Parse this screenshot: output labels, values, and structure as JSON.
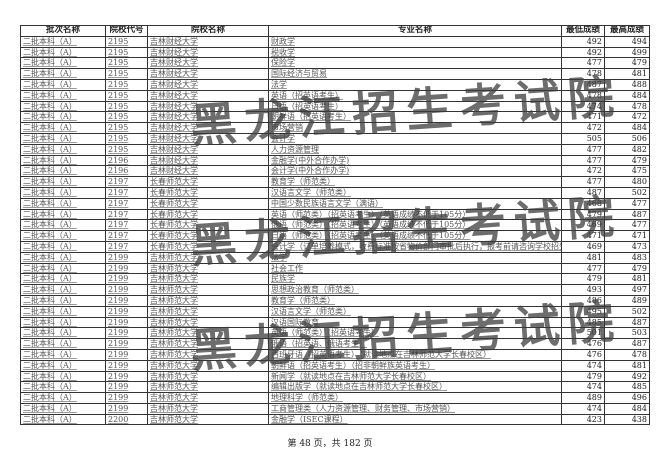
{
  "headers": [
    "批次名称",
    "院校代号",
    "院校名称",
    "专业名称",
    "最低成绩",
    "最高成绩"
  ],
  "rows": [
    [
      "二批本科（A）",
      "2195",
      "吉林财经大学",
      "财政学",
      "492",
      "494"
    ],
    [
      "二批本科（A）",
      "2195",
      "吉林财经大学",
      "税收学",
      "492",
      "499"
    ],
    [
      "二批本科（A）",
      "2195",
      "吉林财经大学",
      "保险学",
      "477",
      "479"
    ],
    [
      "二批本科（A）",
      "2195",
      "吉林财经大学",
      "国际经济与贸易",
      "478",
      "481"
    ],
    [
      "二批本科（A）",
      "2195",
      "吉林财经大学",
      "法学",
      "487",
      "488"
    ],
    [
      "二批本科（A）",
      "2195",
      "吉林财经大学",
      "英语（招英语考生）",
      "478",
      "484"
    ],
    [
      "二批本科（A）",
      "2195",
      "吉林财经大学",
      "日语（招英语考生）",
      "474",
      "478"
    ],
    [
      "二批本科（A）",
      "2195",
      "吉林财经大学",
      "朝鲜语（招英语考生）",
      "471",
      "472"
    ],
    [
      "二批本科（A）",
      "2195",
      "吉林财经大学",
      "市场营销",
      "472",
      "484"
    ],
    [
      "二批本科（A）",
      "2195",
      "吉林财经大学",
      "会计学",
      "505",
      "506"
    ],
    [
      "二批本科（A）",
      "2195",
      "吉林财经大学",
      "人力资源管理",
      "477",
      "482"
    ],
    [
      "二批本科（A）",
      "2196",
      "吉林财经大学",
      "金融学(中外合作办学)",
      "477",
      "479"
    ],
    [
      "二批本科（A）",
      "2196",
      "吉林财经大学",
      "会计学(中外合作办学)",
      "472",
      "475"
    ],
    [
      "二批本科（A）",
      "2197",
      "长春师范大学",
      "教育学（师范类）",
      "477",
      "480"
    ],
    [
      "二批本科（A）",
      "2197",
      "长春师范大学",
      "汉语言文学（师范类）",
      "487",
      "502"
    ],
    [
      "二批本科（A）",
      "2197",
      "长春师范大学",
      "中国少数民族语言文学（满语）",
      "468",
      "477"
    ],
    [
      "二批本科（A）",
      "2197",
      "长春师范大学",
      "英语（师范类）（招英语考生）（英语成绩不低于105分）",
      "479",
      "487"
    ],
    [
      "二批本科（A）",
      "2197",
      "长春师范大学",
      "俄语（师范类）（招英语考生）（英语成绩不低于105分）",
      "469",
      "477"
    ],
    [
      "二批本科（A）",
      "2197",
      "长春师范大学",
      "日语（师范类）（招英语考生）（英语成绩不低于105分）",
      "471",
      "471"
    ],
    [
      "二批本科（A）",
      "2197",
      "长春师范大学",
      "会计学（订单培养模式，收费标准按省物价部门审批后执行，报考前请咨询学校招生办）",
      "469",
      "473"
    ],
    [
      "二批本科（A）",
      "2199",
      "吉林师范大学",
      "法学",
      "481",
      "483"
    ],
    [
      "二批本科（A）",
      "2199",
      "吉林师范大学",
      "社会工作",
      "477",
      "479"
    ],
    [
      "二批本科（A）",
      "2199",
      "吉林师范大学",
      "民族学",
      "479",
      "481"
    ],
    [
      "二批本科（A）",
      "2199",
      "吉林师范大学",
      "思想政治教育（师范类）",
      "493",
      "497"
    ],
    [
      "二批本科（A）",
      "2199",
      "吉林师范大学",
      "教育学（师范类）",
      "486",
      "489"
    ],
    [
      "二批本科（A）",
      "2199",
      "吉林师范大学",
      "汉语言文学（师范类）",
      "495",
      "502"
    ],
    [
      "二批本科（A）",
      "2199",
      "吉林师范大学",
      "汉语国际教育",
      "485",
      "487"
    ],
    [
      "二批本科（A）",
      "2199",
      "吉林师范大学",
      "英语（师范类）（招英语考生）",
      "501",
      "503"
    ],
    [
      "二批本科（A）",
      "2199",
      "吉林师范大学",
      "俄语（招英语、俄语考生）",
      "476",
      "487"
    ],
    [
      "二批本科（A）",
      "2199",
      "吉林师范大学",
      "西班牙语（招英语考生）（就读地点在吉林师范大学长春校区）",
      "476",
      "478"
    ],
    [
      "二批本科（A）",
      "2199",
      "吉林师范大学",
      "朝鲜语（招英语考生）（招非朝鲜族英语考生）",
      "474",
      "481"
    ],
    [
      "二批本科（A）",
      "2199",
      "吉林师范大学",
      "新闻学（就读地点在吉林师范大学长春校区）",
      "479",
      "492"
    ],
    [
      "二批本科（A）",
      "2199",
      "吉林师范大学",
      "编辑出版学（就读地点在吉林师范大学长春校区）",
      "474",
      "485"
    ],
    [
      "二批本科（A）",
      "2199",
      "吉林师范大学",
      "地理科学（师范类）",
      "489",
      "496"
    ],
    [
      "二批本科（A）",
      "2199",
      "吉林师范大学",
      "工商管理类（人力资源管理、财务管理、市场营销）",
      "474",
      "484"
    ],
    [
      "二批本科（A）",
      "2200",
      "吉林师范大学",
      "金融学（ISEC课程）",
      "423",
      "438"
    ]
  ],
  "watermark": "黑龙江招生考试院",
  "footer": "第 48 页，共 182 页"
}
